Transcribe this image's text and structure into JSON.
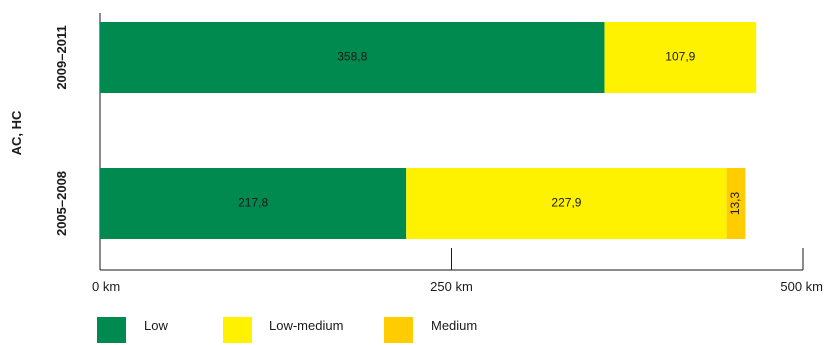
{
  "chart_data": {
    "type": "bar",
    "orientation": "horizontal",
    "stacked": true,
    "group_label": "AC, HC",
    "categories": [
      "2009–2011",
      "2005–2008"
    ],
    "series": [
      {
        "name": "Low",
        "values": [
          358.8,
          217.8
        ],
        "labels": [
          "358,8",
          "217,8"
        ],
        "color": "#008a50"
      },
      {
        "name": "Low-medium",
        "values": [
          107.9,
          227.9
        ],
        "labels": [
          "107,9",
          "227,9"
        ],
        "color": "#fff200"
      },
      {
        "name": "Medium",
        "values": [
          null,
          13.3
        ],
        "labels": [
          "",
          "13,3"
        ],
        "color": "#ffcc00"
      }
    ],
    "xlim": [
      0,
      500
    ],
    "xticks": [
      0,
      250,
      500
    ],
    "xtick_labels": [
      "0 km",
      "250 km",
      "500 km"
    ],
    "grid": false,
    "legend_position": "bottom"
  }
}
